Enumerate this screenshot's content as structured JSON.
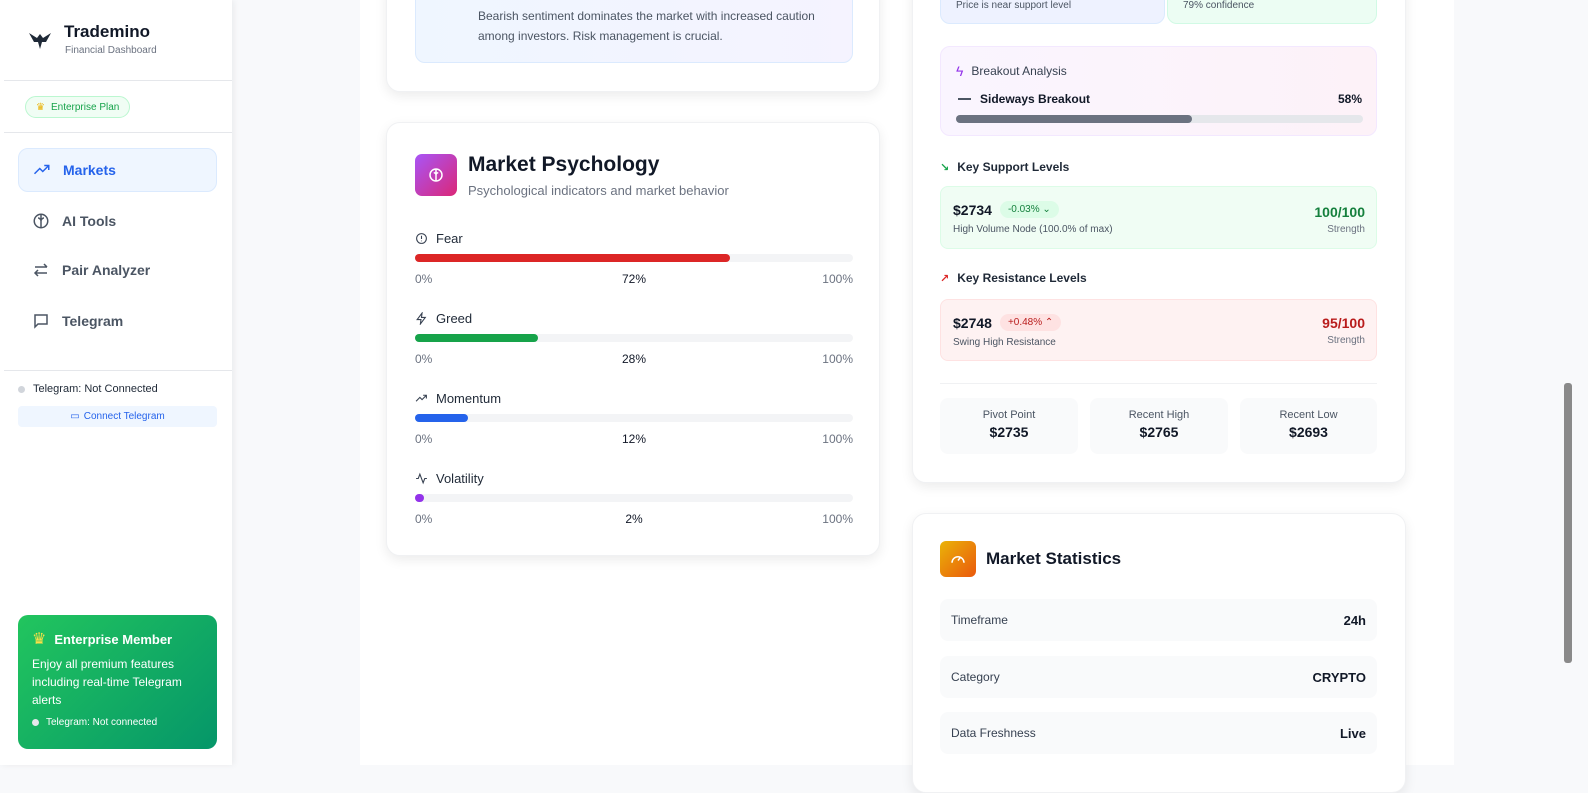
{
  "sidebar": {
    "brand": {
      "title": "Trademino",
      "subtitle": "Financial Dashboard"
    },
    "plan_badge": "Enterprise Plan",
    "nav": [
      {
        "label": "Markets",
        "icon": "trending-up-icon",
        "active": true
      },
      {
        "label": "AI Tools",
        "icon": "brain-icon"
      },
      {
        "label": "Pair Analyzer",
        "icon": "arrows-left-right-icon"
      },
      {
        "label": "Telegram",
        "icon": "message-square-icon"
      }
    ],
    "telegram_status": "Telegram: Not Connected",
    "connect_button": "Connect Telegram",
    "member": {
      "title": "Enterprise Member",
      "text": "Enjoy all premium features including real-time Telegram alerts",
      "status": "Telegram: Not connected"
    }
  },
  "sentiment": {
    "text": "Bearish sentiment dominates the market with increased caution among investors. Risk management is crucial."
  },
  "psychology": {
    "title": "Market Psychology",
    "subtitle": "Psychological indicators and market behavior",
    "min_label": "0%",
    "max_label": "100%",
    "indicators": [
      {
        "label": "Fear",
        "value": 72,
        "display": "72%",
        "color": "#dc2626",
        "icon": "alert-circle-icon"
      },
      {
        "label": "Greed",
        "value": 28,
        "display": "28%",
        "color": "#16a34a",
        "icon": "zap-icon"
      },
      {
        "label": "Momentum",
        "value": 12,
        "display": "12%",
        "color": "#2563eb",
        "icon": "trending-up-icon"
      },
      {
        "label": "Volatility",
        "value": 2,
        "display": "2%",
        "color": "#9333ea",
        "icon": "activity-icon"
      }
    ]
  },
  "analysis": {
    "top_left": "Price is near support level",
    "top_right": "79% confidence",
    "breakout": {
      "title": "Breakout Analysis",
      "label": "Sideways Breakout",
      "value": 58,
      "display": "58%"
    },
    "support": {
      "title": "Key Support Levels",
      "price": "$2734",
      "change": "-0.03%",
      "desc": "High Volume Node (100.0% of max)",
      "strength": "100/100",
      "strength_label": "Strength"
    },
    "resistance": {
      "title": "Key Resistance Levels",
      "price": "$2748",
      "change": "+0.48%",
      "desc": "Swing High Resistance",
      "strength": "95/100",
      "strength_label": "Strength"
    },
    "stats": [
      {
        "label": "Pivot Point",
        "value": "$2735"
      },
      {
        "label": "Recent High",
        "value": "$2765"
      },
      {
        "label": "Recent Low",
        "value": "$2693"
      }
    ]
  },
  "market_stats": {
    "title": "Market Statistics",
    "rows": [
      {
        "label": "Timeframe",
        "value": "24h"
      },
      {
        "label": "Category",
        "value": "CRYPTO"
      },
      {
        "label": "Data Freshness",
        "value": "Live"
      }
    ]
  },
  "colors": {
    "accent": "#2563eb",
    "bearish": "#dc2626",
    "bullish": "#16a34a"
  }
}
